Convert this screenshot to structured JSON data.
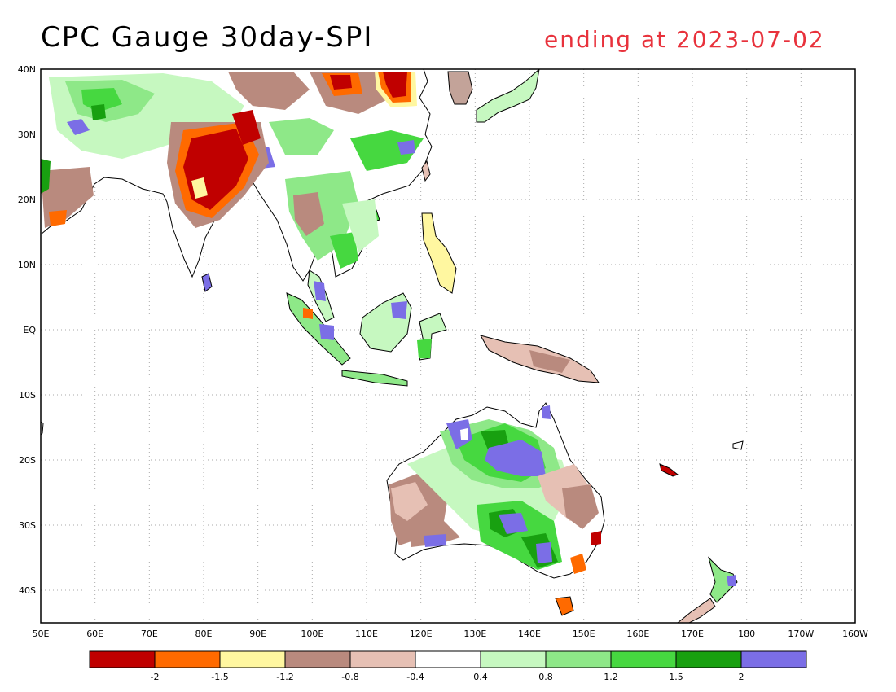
{
  "title": "CPC Gauge 30day-SPI",
  "subtitle": "ending at 2023-07-02",
  "colors": {
    "title_right": "#e8323c",
    "land_neutral": "#ffffff",
    "coastline": "#000000",
    "grid": "#aaaaaa"
  },
  "map": {
    "lon_labels": [
      "50E",
      "60E",
      "70E",
      "80E",
      "90E",
      "100E",
      "110E",
      "120E",
      "130E",
      "140E",
      "150E",
      "160E",
      "170E",
      "180",
      "170W",
      "160W"
    ],
    "lat_labels": [
      "40N",
      "30N",
      "20N",
      "10N",
      "EQ",
      "10S",
      "20S",
      "30S",
      "40S"
    ],
    "lon_range": [
      "50E",
      "160W"
    ],
    "lat_range": [
      "45S",
      "40N"
    ],
    "grid": true
  },
  "legend": {
    "labels": [
      "-2",
      "-1.5",
      "-1.2",
      "-0.8",
      "-0.4",
      "0.4",
      "0.8",
      "1.2",
      "1.5",
      "2"
    ],
    "colors": [
      "#c00000",
      "#ff6a00",
      "#fff7a0",
      "#b98a7e",
      "#e6c0b4",
      "#ffffff",
      "#c6f8c0",
      "#8ee888",
      "#46d840",
      "#18a010",
      "#7b6ee6"
    ]
  }
}
